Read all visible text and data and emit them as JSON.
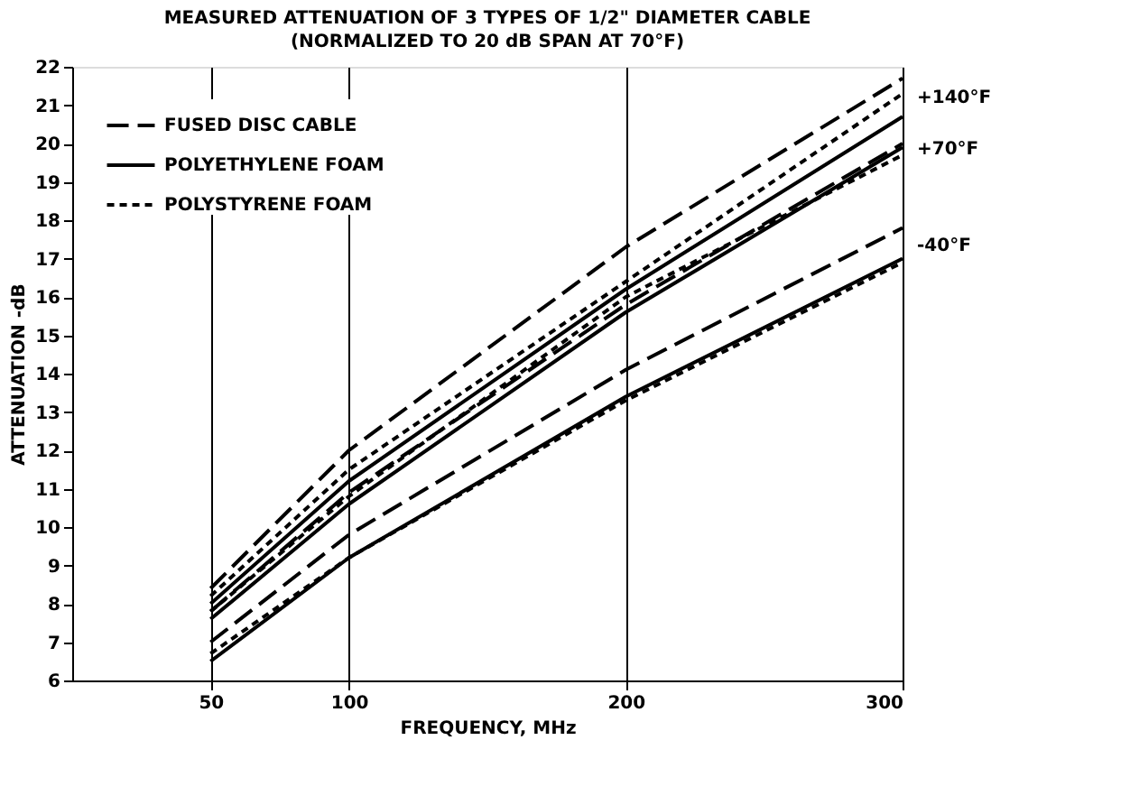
{
  "chart_data": {
    "type": "line",
    "title": "MEASURED ATTENUATION OF 3 TYPES OF 1/2\" DIAMETER CABLE",
    "subtitle": "(NORMALIZED TO 20 dB SPAN AT 70°F)",
    "xlabel": "FREQUENCY, MHz",
    "ylabel": "ATTENUATION -dB",
    "x": [
      50,
      100,
      200,
      300
    ],
    "xlim": [
      0,
      300
    ],
    "xticks": [
      50,
      100,
      200,
      300
    ],
    "ylim": [
      6,
      22
    ],
    "yticks": [
      6,
      7,
      8,
      9,
      10,
      11,
      12,
      13,
      14,
      15,
      16,
      17,
      18,
      19,
      20,
      21,
      22
    ],
    "grid": "x",
    "legend": "top left",
    "marker": "none",
    "series": [
      {
        "name": "FUSED DISC CABLE",
        "color": "#000000",
        "line_style": "dashed",
        "values": [
          8.4,
          12.0,
          17.3,
          21.7
        ]
      },
      {
        "name": "POLYETHYLENE FOAM",
        "color": "#000000",
        "line_style": "solid",
        "values": [
          8.0,
          11.2,
          16.2,
          20.7
        ]
      },
      {
        "name": "POLYSTYRENE FOAM",
        "color": "#000000",
        "line_style": "dotted",
        "values": [
          8.2,
          11.5,
          16.4,
          21.3
        ]
      },
      {
        "color": "#000000",
        "line_style": "dashed",
        "values": [
          7.8,
          10.9,
          15.8,
          20.0
        ]
      },
      {
        "color": "#000000",
        "line_style": "solid",
        "values": [
          7.6,
          10.6,
          15.6,
          19.9
        ]
      },
      {
        "color": "#000000",
        "line_style": "dotted",
        "values": [
          7.8,
          10.8,
          16.0,
          19.7
        ]
      },
      {
        "color": "#000000",
        "line_style": "dashed",
        "values": [
          7.0,
          9.8,
          14.1,
          17.8
        ]
      },
      {
        "color": "#000000",
        "line_style": "solid",
        "values": [
          6.5,
          9.2,
          13.4,
          17.0
        ]
      },
      {
        "color": "#000000",
        "line_style": "dotted",
        "values": [
          6.7,
          9.2,
          13.3,
          16.9
        ]
      }
    ],
    "annotations": [
      "+140°F",
      "+70°F",
      "-40°F"
    ]
  }
}
